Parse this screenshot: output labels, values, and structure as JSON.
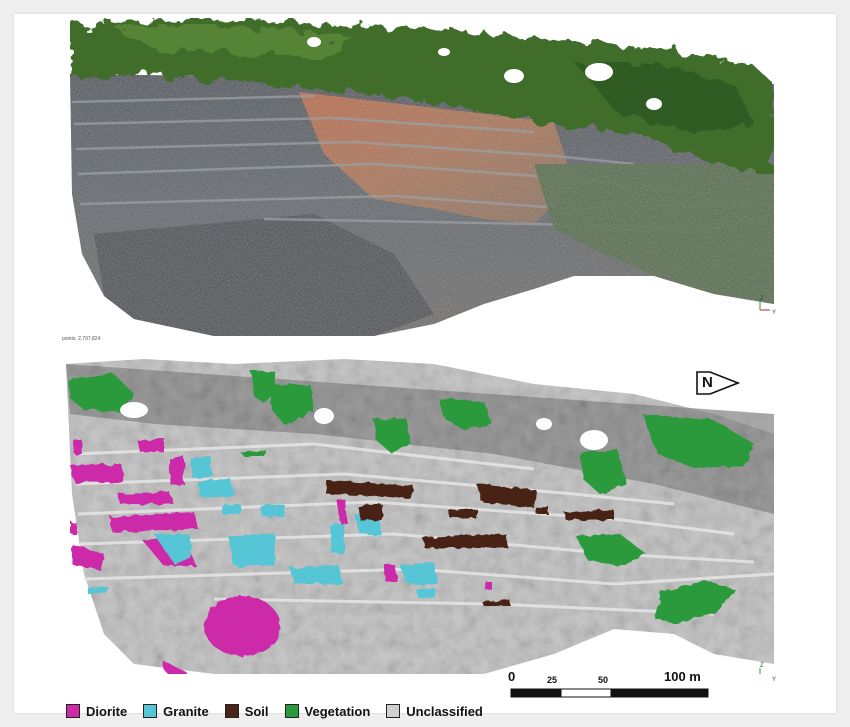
{
  "top_panel": {
    "point_count": "points: 2,797,824"
  },
  "axes": {
    "z": "Z",
    "y": "Y"
  },
  "north": {
    "label": "N"
  },
  "scale": {
    "ticks": [
      "0",
      "25",
      "50",
      "100 m"
    ]
  },
  "legend": [
    {
      "label": "Diorite",
      "color": "#cc2aa8"
    },
    {
      "label": "Granite",
      "color": "#56c6d6"
    },
    {
      "label": "Soil",
      "color": "#4a2418"
    },
    {
      "label": "Vegetation",
      "color": "#2a9a3c"
    },
    {
      "label": "Unclassified",
      "color": "#cfcfcf"
    }
  ]
}
